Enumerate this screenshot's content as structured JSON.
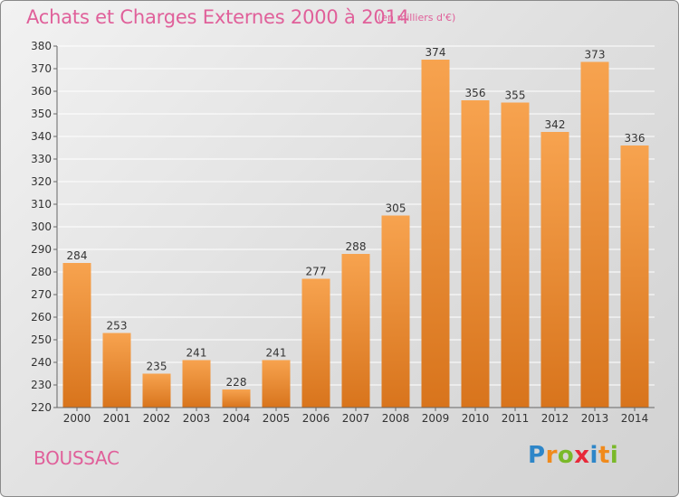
{
  "title": "Achats et Charges Externes 2000 à 2014",
  "unit": "(en milliers d'€)",
  "commune": "BOUSSAC",
  "logo": {
    "letters": [
      "P",
      "r",
      "o",
      "x",
      "i",
      "t",
      "i"
    ],
    "colors": [
      "#2e86c8",
      "#f08a1c",
      "#7ab929",
      "#e8293a",
      "#2e86c8",
      "#f08a1c",
      "#7ab929"
    ]
  },
  "colors": {
    "title": "#e0609a",
    "bar_top": "#f7a34f",
    "bar_bottom": "#d8741c",
    "grid": "#ffffff"
  },
  "chart_data": {
    "type": "bar",
    "categories": [
      "2000",
      "2001",
      "2002",
      "2003",
      "2004",
      "2005",
      "2006",
      "2007",
      "2008",
      "2009",
      "2010",
      "2011",
      "2012",
      "2013",
      "2014"
    ],
    "values": [
      284,
      253,
      235,
      241,
      228,
      241,
      277,
      288,
      305,
      374,
      356,
      355,
      342,
      373,
      336
    ],
    "ylim": [
      220,
      380
    ],
    "yticks": [
      220,
      230,
      240,
      250,
      260,
      270,
      280,
      290,
      300,
      310,
      320,
      330,
      340,
      350,
      360,
      370,
      380
    ],
    "grid": true
  }
}
